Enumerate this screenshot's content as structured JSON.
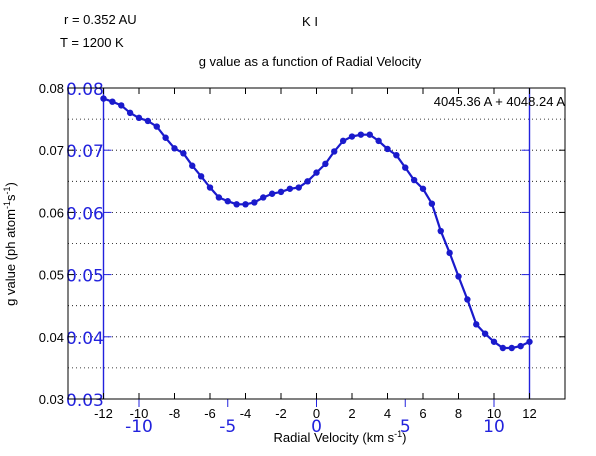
{
  "chart_data": {
    "type": "line",
    "header": {
      "r": "r = 0.352 AU",
      "T": "T = 1200 K",
      "species": "K I"
    },
    "title": "g value as a function of Radial Velocity",
    "xlabel": "Radial Velocity (km s",
    "xlabel_sup": "-1",
    "xlabel_close": ")",
    "ylabel": "g value (ph atom",
    "ylabel_sup1": "-1",
    "ylabel_mid": "s",
    "ylabel_sup2": "-1",
    "ylabel_close": ")",
    "annotation": "4045.36 A + 4048.24 A",
    "xlim": [
      -14,
      14
    ],
    "ylim": [
      0.03,
      0.08
    ],
    "grid": true,
    "x_ticks": [
      "-12",
      "-10",
      "-8",
      "-6",
      "-4",
      "-2",
      "0",
      "2",
      "4",
      "6",
      "8",
      "10",
      "12"
    ],
    "y_ticks": [
      "0.03",
      "0.04",
      "0.05",
      "0.06",
      "0.07",
      "0.08"
    ],
    "overlay_x_ticks": [
      "-10",
      "-5",
      "0",
      "5",
      "10"
    ],
    "overlay_y_ticks": [
      "0.03",
      "0.04",
      "0.05",
      "0.06",
      "0.07",
      "0.08"
    ],
    "series": [
      {
        "color": "#1a1acc",
        "x": [
          -12.0,
          -11.5,
          -11.0,
          -10.5,
          -10.0,
          -9.5,
          -9.0,
          -8.5,
          -8.0,
          -7.5,
          -7.0,
          -6.5,
          -6.0,
          -5.5,
          -5.0,
          -4.5,
          -4.0,
          -3.5,
          -3.0,
          -2.5,
          -2.0,
          -1.5,
          -1.0,
          -0.5,
          0.0,
          0.5,
          1.0,
          1.5,
          2.0,
          2.5,
          3.0,
          3.5,
          4.0,
          4.5,
          5.0,
          5.5,
          6.0,
          6.5,
          7.0,
          7.5,
          8.0,
          8.5,
          9.0,
          9.5,
          10.0,
          10.5,
          11.0,
          11.5,
          12.0
        ],
        "y": [
          0.0783,
          0.0778,
          0.0772,
          0.076,
          0.0752,
          0.0747,
          0.0738,
          0.072,
          0.0703,
          0.0695,
          0.0675,
          0.0658,
          0.064,
          0.0624,
          0.0618,
          0.0613,
          0.0613,
          0.0616,
          0.0624,
          0.063,
          0.0633,
          0.0638,
          0.064,
          0.065,
          0.0664,
          0.0678,
          0.0698,
          0.0715,
          0.0722,
          0.0725,
          0.0725,
          0.0715,
          0.0702,
          0.0692,
          0.0672,
          0.0652,
          0.0638,
          0.0614,
          0.057,
          0.0535,
          0.0497,
          0.046,
          0.042,
          0.0405,
          0.0392,
          0.0382,
          0.0382,
          0.0385,
          0.0392
        ]
      }
    ]
  }
}
